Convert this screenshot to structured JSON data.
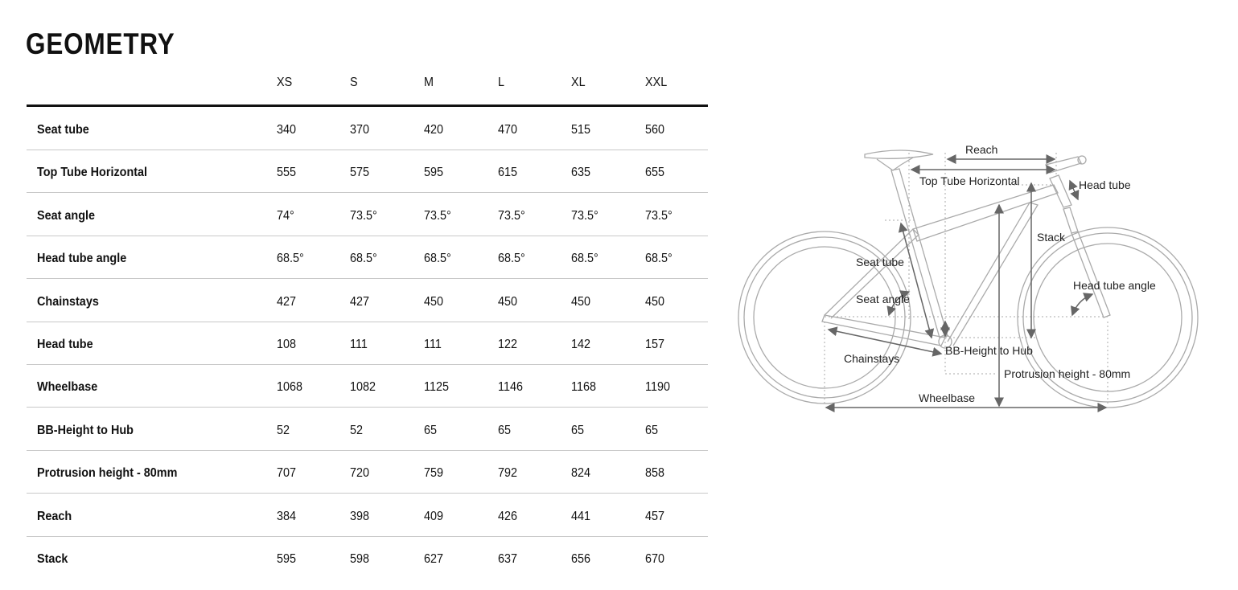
{
  "title": "GEOMETRY",
  "sizes": [
    "XS",
    "S",
    "M",
    "L",
    "XL",
    "XXL"
  ],
  "rows": [
    {
      "label": "Seat tube",
      "values": [
        "340",
        "370",
        "420",
        "470",
        "515",
        "560"
      ]
    },
    {
      "label": "Top Tube Horizontal",
      "values": [
        "555",
        "575",
        "595",
        "615",
        "635",
        "655"
      ]
    },
    {
      "label": "Seat angle",
      "values": [
        "74°",
        "73.5°",
        "73.5°",
        "73.5°",
        "73.5°",
        "73.5°"
      ]
    },
    {
      "label": "Head tube angle",
      "values": [
        "68.5°",
        "68.5°",
        "68.5°",
        "68.5°",
        "68.5°",
        "68.5°"
      ]
    },
    {
      "label": "Chainstays",
      "values": [
        "427",
        "427",
        "450",
        "450",
        "450",
        "450"
      ]
    },
    {
      "label": "Head tube",
      "values": [
        "108",
        "111",
        "111",
        "122",
        "142",
        "157"
      ]
    },
    {
      "label": "Wheelbase",
      "values": [
        "1068",
        "1082",
        "1125",
        "1146",
        "1168",
        "1190"
      ]
    },
    {
      "label": "BB-Height to Hub",
      "values": [
        "52",
        "52",
        "65",
        "65",
        "65",
        "65"
      ]
    },
    {
      "label": "Protrusion height - 80mm",
      "values": [
        "707",
        "720",
        "759",
        "792",
        "824",
        "858"
      ]
    },
    {
      "label": "Reach",
      "values": [
        "384",
        "398",
        "409",
        "426",
        "441",
        "457"
      ]
    },
    {
      "label": "Stack",
      "values": [
        "595",
        "598",
        "627",
        "637",
        "656",
        "670"
      ]
    }
  ],
  "diagram": {
    "reach": "Reach",
    "top_tube": "Top Tube Horizontal",
    "head_tube": "Head tube",
    "stack": "Stack",
    "seat_tube": "Seat tube",
    "seat_angle": "Seat angle",
    "head_tube_angle": "Head tube angle",
    "chainstays": "Chainstays",
    "bb_height": "BB-Height to Hub",
    "protrusion": "Protrusion height - 80mm",
    "wheelbase": "Wheelbase"
  }
}
